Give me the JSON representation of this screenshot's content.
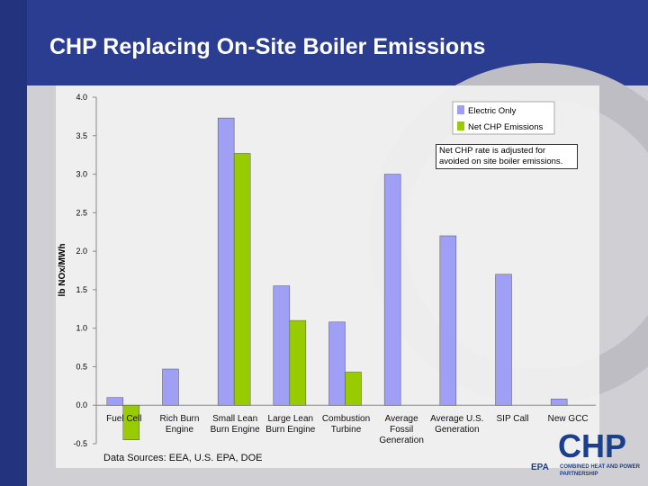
{
  "chart_data": {
    "type": "bar",
    "title": "CHP Replacing On-Site Boiler Emissions",
    "y_label": "lb NOx/MWh",
    "categories": [
      "Fuel Cell",
      "Rich Burn Engine",
      "Small Lean Burn Engine",
      "Large Lean Burn Engine",
      "Combustion Turbine",
      "Average Fossil Generation",
      "Average U.S. Generation",
      "SIP Call",
      "New GCC"
    ],
    "series": [
      {
        "name": "Electric Only",
        "color": "#9f9ff5",
        "values": [
          0.1,
          0.47,
          3.73,
          1.55,
          1.08,
          3.0,
          2.2,
          1.7,
          0.08
        ]
      },
      {
        "name": "Net CHP Emissions",
        "color": "#99cc00",
        "values": [
          -0.45,
          null,
          3.27,
          1.1,
          0.43,
          null,
          null,
          null,
          null
        ]
      }
    ],
    "ylim": [
      -0.5,
      4.0
    ],
    "yticks": [
      {
        "value": -0.5,
        "label": "-0.5"
      },
      {
        "value": 0,
        "label": "0.0"
      },
      {
        "value": 0.5,
        "label": "0.5"
      },
      {
        "value": 1,
        "label": "1.0"
      },
      {
        "value": 1.5,
        "label": "1.5"
      },
      {
        "value": 2,
        "label": "2.0"
      },
      {
        "value": 2.5,
        "label": "2.5"
      },
      {
        "value": 3,
        "label": "3.0"
      },
      {
        "value": 3.5,
        "label": "3.5"
      },
      {
        "value": 4,
        "label": "4.0"
      }
    ],
    "grid": false,
    "legend": "top-right",
    "annotation": "Net CHP rate is adjusted for avoided on site boiler emissions.",
    "source": "Data Sources: EEA, U.S. EPA, DOE"
  },
  "logo": {
    "mark": "CHP",
    "agency": "EPA",
    "tagline": "COMBINED HEAT AND POWER PARTNERSHIP"
  }
}
